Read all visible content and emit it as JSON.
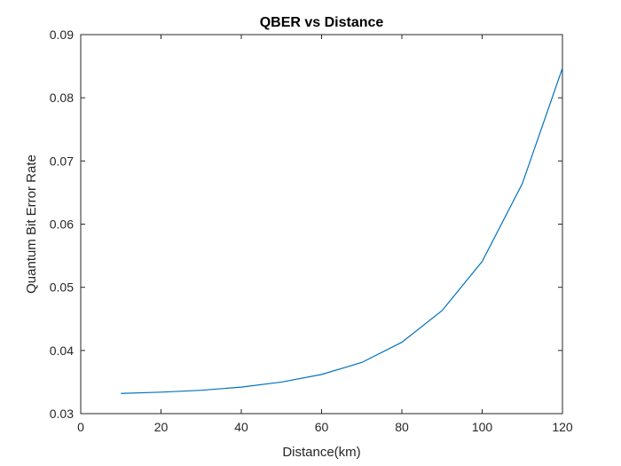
{
  "chart_data": {
    "type": "line",
    "title": "QBER vs Distance",
    "xlabel": "Distance(km)",
    "ylabel": "Quantum Bit Error Rate",
    "xlim": [
      0,
      120
    ],
    "ylim": [
      0.03,
      0.09
    ],
    "xticks": [
      0,
      20,
      40,
      60,
      80,
      100,
      120
    ],
    "yticks": [
      0.03,
      0.04,
      0.05,
      0.06,
      0.07,
      0.08,
      0.09
    ],
    "xtick_labels": [
      "0",
      "20",
      "40",
      "60",
      "80",
      "100",
      "120"
    ],
    "ytick_labels": [
      "0.03",
      "0.04",
      "0.05",
      "0.06",
      "0.07",
      "0.08",
      "0.09"
    ],
    "grid": false,
    "series": [
      {
        "color": "#0072BD",
        "x": [
          10,
          20,
          30,
          40,
          50,
          60,
          70,
          80,
          90,
          100,
          110,
          120
        ],
        "y": [
          0.0332,
          0.0334,
          0.0337,
          0.0342,
          0.035,
          0.0362,
          0.0381,
          0.0413,
          0.0463,
          0.0541,
          0.0664,
          0.0847
        ]
      }
    ]
  }
}
